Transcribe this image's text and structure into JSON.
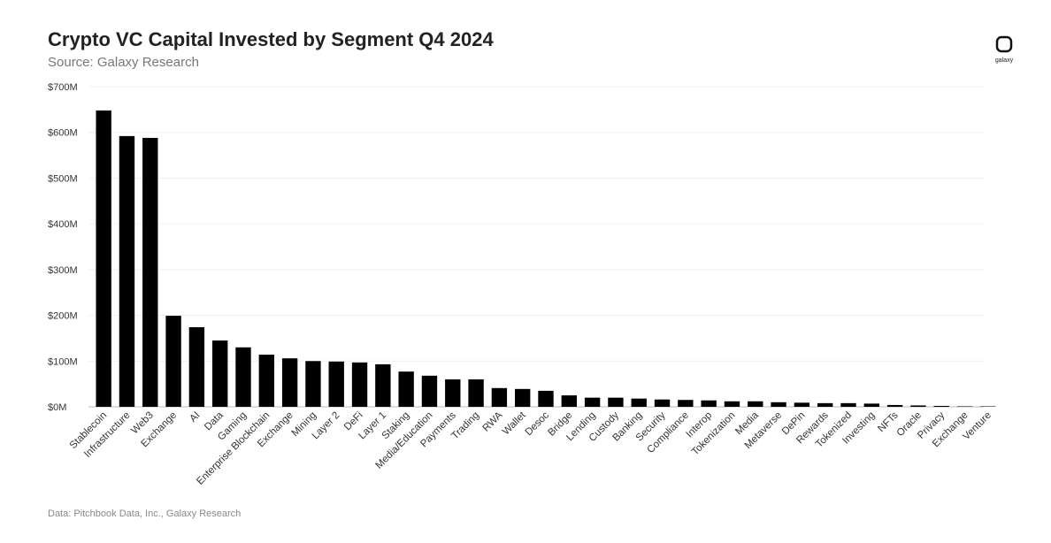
{
  "chart_data": {
    "type": "bar",
    "title": "Crypto VC Capital Invested by Segment Q4 2024",
    "subtitle": "Source: Galaxy Research",
    "note": "Data: Pitchbook Data, Inc., Galaxy Research",
    "logo": "galaxy",
    "categories": [
      "Stablecoin",
      "Infrastructure",
      "Web3",
      "Exchange",
      "AI",
      "Data",
      "Gaming",
      "Enterprise Blockchain",
      "Exchange",
      "Mining",
      "Layer 2",
      "DeFi",
      "Layer 1",
      "Staking",
      "Media/Education",
      "Payments",
      "Trading",
      "RWA",
      "Wallet",
      "Desoc",
      "Bridge",
      "Lending",
      "Custody",
      "Banking",
      "Security",
      "Compliance",
      "Interop",
      "Tokenization",
      "Media",
      "Metaverse",
      "DePin",
      "Rewards",
      "Tokenized",
      "Investing",
      "NFTs",
      "Oracle",
      "Privacy",
      "Exchange",
      "Venture"
    ],
    "values": [
      648,
      592,
      588,
      199,
      174,
      145,
      130,
      114,
      106,
      100,
      99,
      97,
      93,
      77,
      68,
      60,
      60,
      41,
      39,
      35,
      25,
      20,
      20,
      18,
      16,
      15,
      14,
      12,
      12,
      10,
      9,
      8,
      8,
      7,
      4,
      3,
      2,
      1,
      1
    ],
    "color": "#000000",
    "ylim": [
      0,
      700
    ],
    "yticks": [
      {
        "value": 0,
        "label": "$0M"
      },
      {
        "value": 100,
        "label": "$100M"
      },
      {
        "value": 200,
        "label": "$200M"
      },
      {
        "value": 300,
        "label": "$300M"
      },
      {
        "value": 400,
        "label": "$400M"
      },
      {
        "value": 500,
        "label": "$500M"
      },
      {
        "value": 600,
        "label": "$600M"
      },
      {
        "value": 700,
        "label": "$700M"
      }
    ],
    "grid": true
  }
}
